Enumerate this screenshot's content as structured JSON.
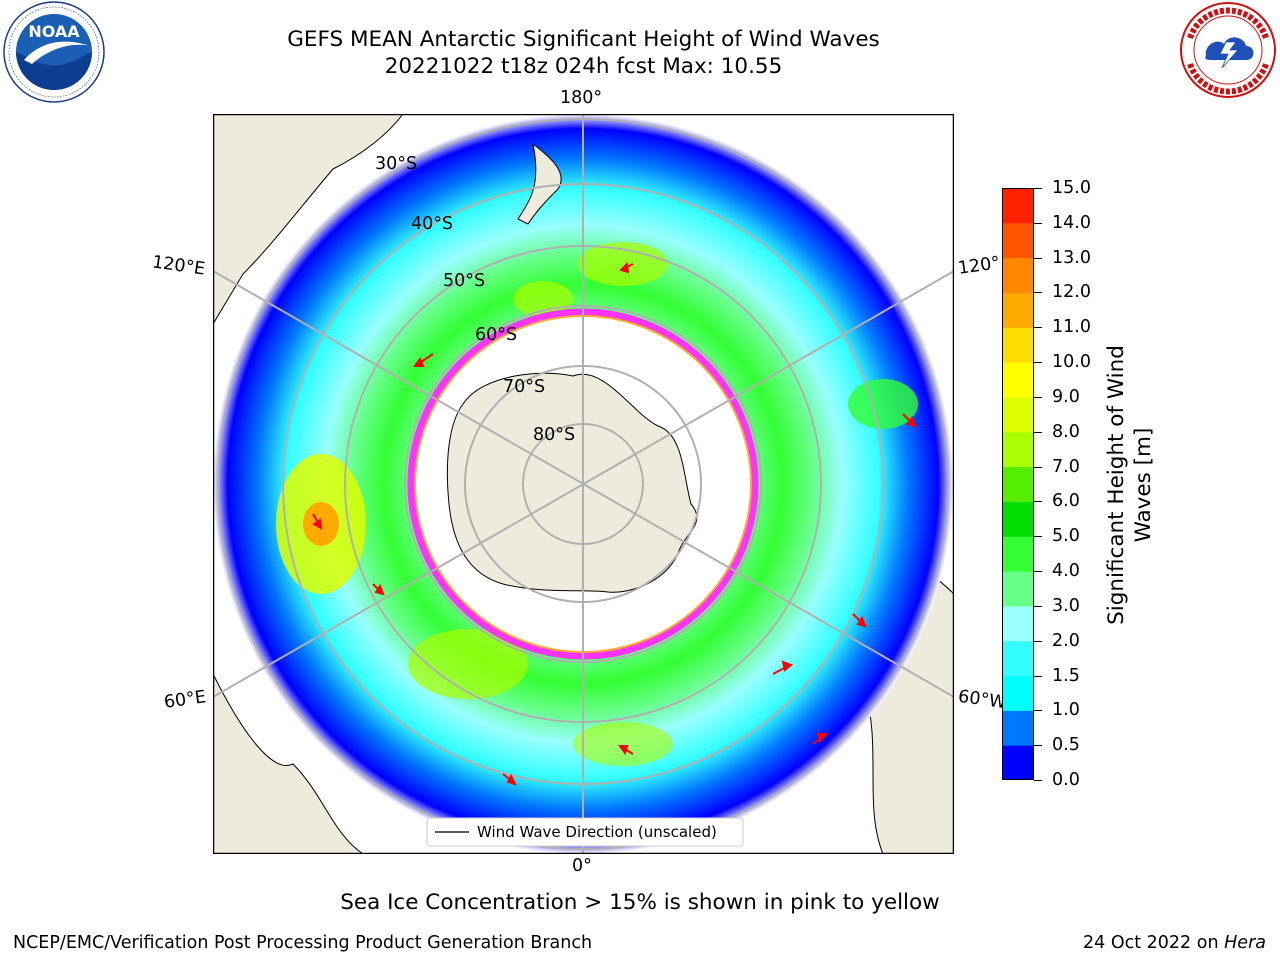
{
  "header": {
    "title_line1": "GEFS MEAN Antarctic Significant Height of Wind Waves",
    "title_line2": "20221022 t18z 024h fcst   Max: 10.55"
  },
  "logos": {
    "left": {
      "name": "noaa-logo",
      "text": "NOAA",
      "ring_text": "NATIONAL OCEANIC AND ATMOSPHERIC ADMINISTRATION · U.S. DEPARTMENT OF COMMERCE"
    },
    "right": {
      "name": "nws-logo",
      "ring_text": "NATIONAL WEATHER SERVICE"
    }
  },
  "map": {
    "projection": "south-polar-stereographic",
    "longitude_labels": {
      "top": "180°",
      "bottom": "0°",
      "left_upper": "120°E",
      "left_lower": "60°E",
      "right_upper": "120°",
      "right_lower": "60°W"
    },
    "latitude_labels": [
      "30°S",
      "40°S",
      "50°S",
      "60°S",
      "70°S",
      "80°S"
    ],
    "legend_label": "Wind Wave Direction (unscaled)",
    "colors": {
      "land": "#efebdc",
      "ocean": "#ffffff",
      "arrows": "#ff0000",
      "grid": "#b0b0b0",
      "sea_ice_low": "#ffaa33",
      "sea_ice_high": "#ff33ff"
    }
  },
  "colorbar": {
    "label": "Significant Height of Wind Waves [m]",
    "label_line1": "Significant Height of Wind",
    "label_line2": "Waves [m]",
    "ticks": [
      "0.0",
      "0.5",
      "1.0",
      "1.5",
      "2.0",
      "3.0",
      "4.0",
      "5.0",
      "6.0",
      "7.0",
      "8.0",
      "9.0",
      "10.0",
      "11.0",
      "12.0",
      "13.0",
      "14.0",
      "15.0"
    ],
    "colors": [
      "#0000ff",
      "#0077ff",
      "#00ffff",
      "#33ffff",
      "#99ffff",
      "#66ff88",
      "#33ff33",
      "#00dd00",
      "#55ee00",
      "#aaff00",
      "#ddff00",
      "#ffff00",
      "#ffdd00",
      "#ffaa00",
      "#ff8800",
      "#ff5500",
      "#ff2200"
    ]
  },
  "caption": "Sea Ice Concentration > 15% is shown in pink to yellow",
  "footer": {
    "left": "NCEP/EMC/Verification Post Processing Product Generation Branch",
    "right_date": "24 Oct 2022 on",
    "right_host": "Hera"
  },
  "chart_data": {
    "type": "heatmap",
    "title": "GEFS MEAN Antarctic Significant Height of Wind Waves",
    "subtitle": "20221022 t18z 024h fcst   Max: 10.55",
    "max_value": 10.55,
    "units": "m",
    "colorbar_range": [
      0.0,
      15.0
    ],
    "colorbar_levels": [
      0.0,
      0.5,
      1.0,
      1.5,
      2.0,
      3.0,
      4.0,
      5.0,
      6.0,
      7.0,
      8.0,
      9.0,
      10.0,
      11.0,
      12.0,
      13.0,
      14.0,
      15.0
    ],
    "legend": [
      "Wind Wave Direction (unscaled)"
    ]
  }
}
